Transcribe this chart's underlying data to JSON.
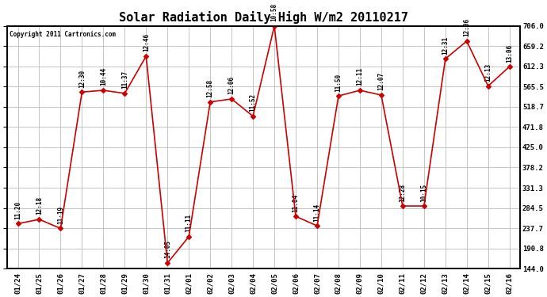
{
  "title": "Solar Radiation Daily High W/m2 20110217",
  "copyright": "Copyright 2011 Cartronics.com",
  "dates": [
    "01/24",
    "01/25",
    "01/26",
    "01/27",
    "01/28",
    "01/29",
    "01/30",
    "01/31",
    "02/01",
    "02/02",
    "02/03",
    "02/04",
    "02/05",
    "02/06",
    "02/07",
    "02/08",
    "02/09",
    "02/10",
    "02/11",
    "02/12",
    "02/13",
    "02/14",
    "02/15",
    "02/16"
  ],
  "values": [
    248,
    258,
    237,
    553,
    557,
    550,
    636,
    157,
    218,
    530,
    537,
    497,
    706,
    265,
    243,
    544,
    557,
    546,
    289,
    289,
    630,
    671,
    567,
    612
  ],
  "labels": [
    "11:20",
    "12:18",
    "11:19",
    "12:30",
    "10:44",
    "11:37",
    "12:46",
    "14:05",
    "11:11",
    "12:58",
    "12:06",
    "11:52",
    "10:58",
    "11:04",
    "11:14",
    "11:50",
    "12:11",
    "12:07",
    "12:28",
    "10:15",
    "12:31",
    "12:06",
    "12:13",
    "13:06"
  ],
  "ylim": [
    144.0,
    706.0
  ],
  "yticks": [
    144.0,
    190.8,
    237.7,
    284.5,
    331.3,
    378.2,
    425.0,
    471.8,
    518.7,
    565.5,
    612.3,
    659.2,
    706.0
  ],
  "ytick_labels": [
    "144.0",
    "190.8",
    "237.7",
    "284.5",
    "331.3",
    "378.2",
    "425.0",
    "471.8",
    "518.7",
    "565.5",
    "612.3",
    "659.2",
    "706.0"
  ],
  "line_color": "#cc0000",
  "marker_color": "#cc0000",
  "bg_color": "#ffffff",
  "grid_color": "#bbbbbb",
  "title_fontsize": 11,
  "label_fontsize": 5.5,
  "tick_fontsize": 6.5,
  "copyright_fontsize": 5.5
}
